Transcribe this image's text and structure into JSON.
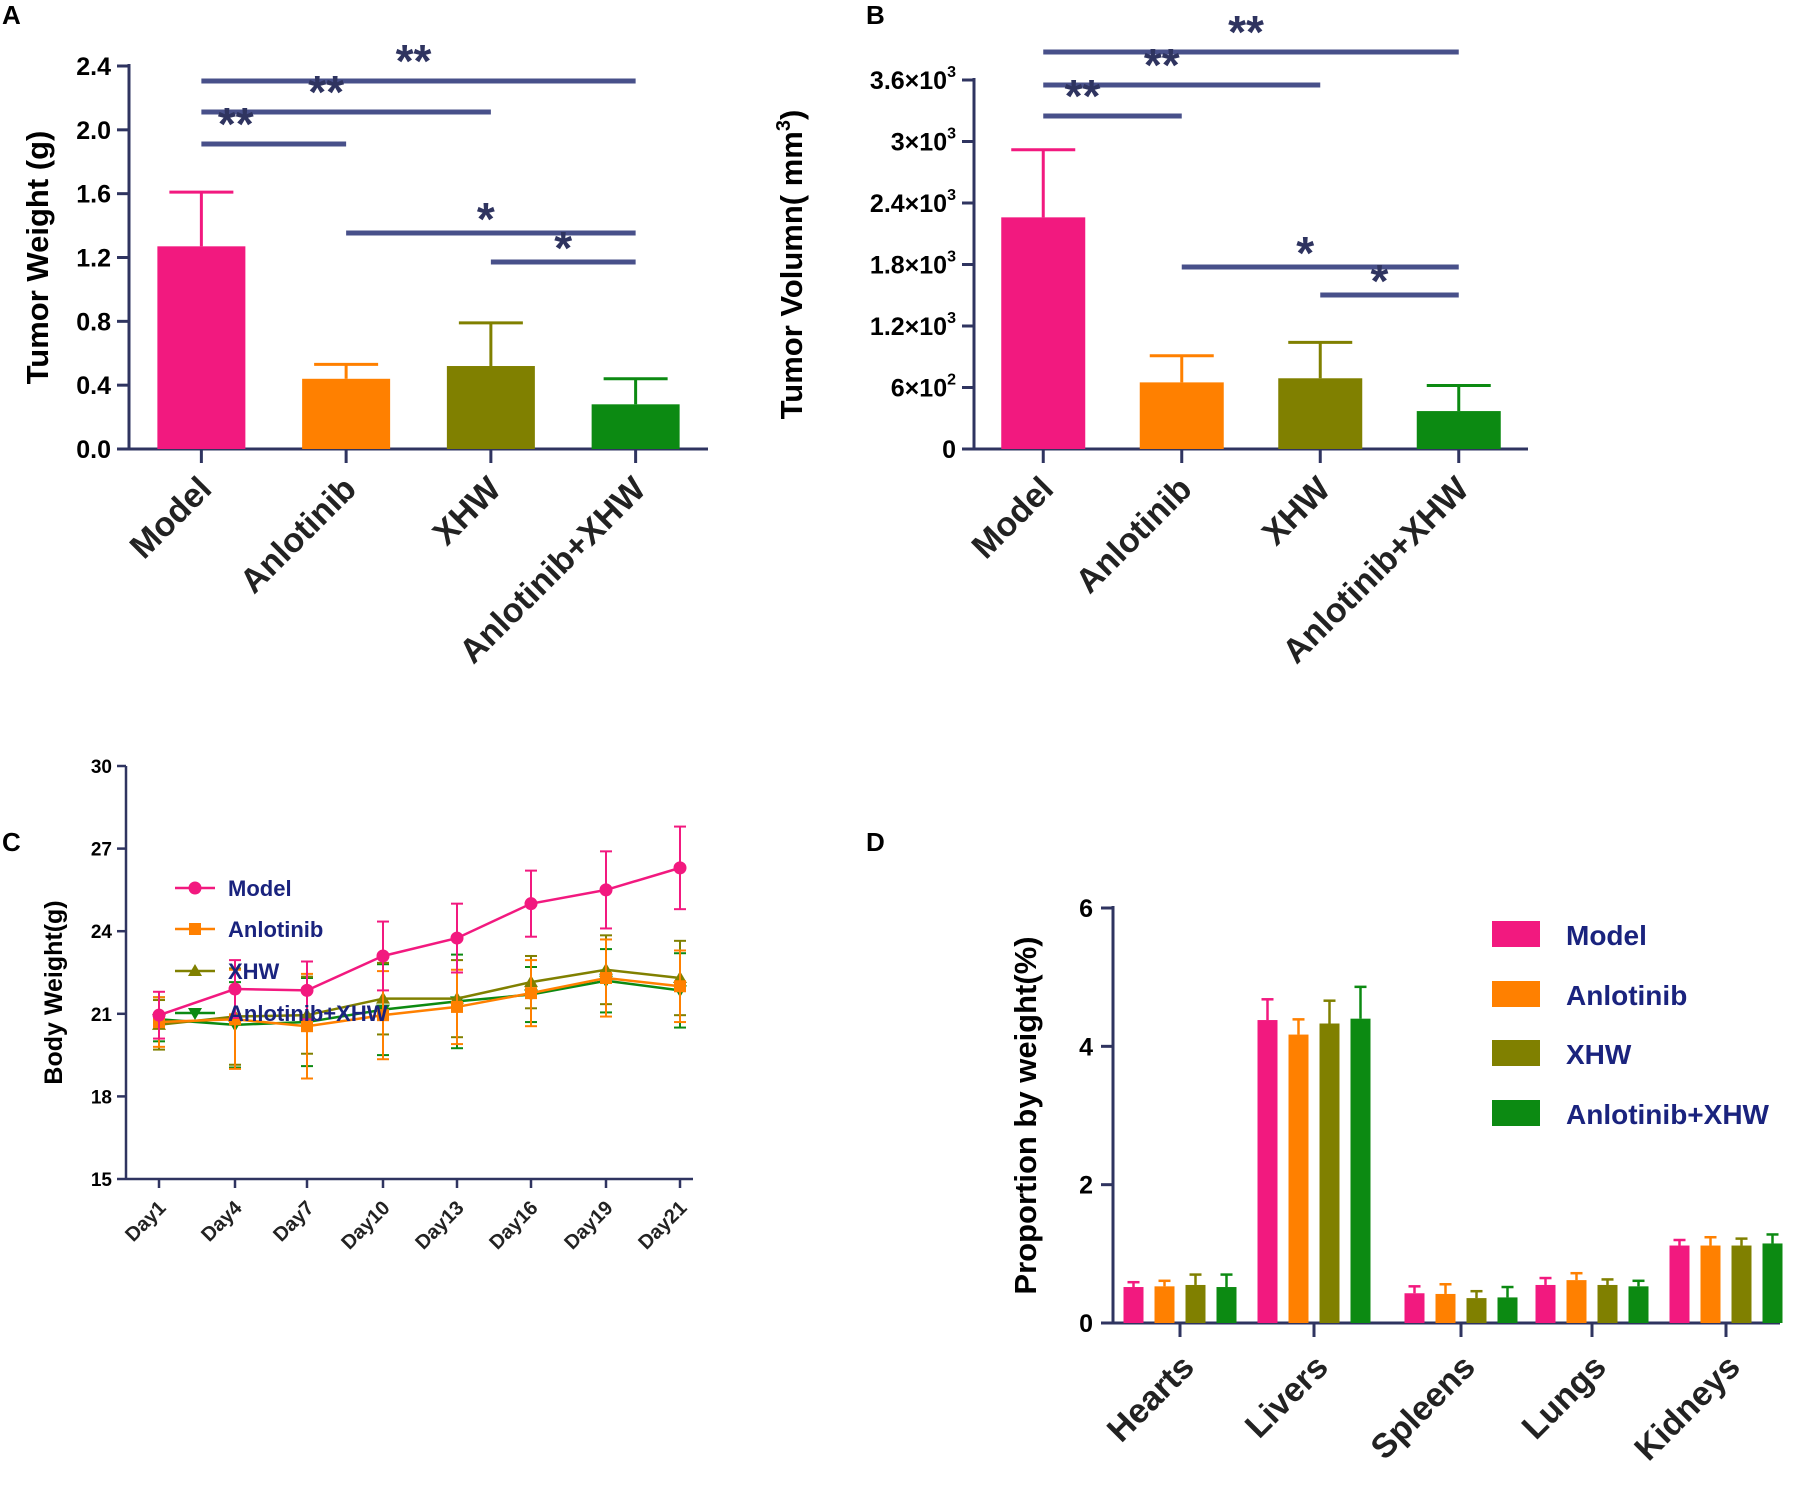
{
  "colors": {
    "model": "#F2197F",
    "anlotinib": "#FF8000",
    "xhw": "#808000",
    "combo": "#0C8A12",
    "axis": "#2F3460",
    "sig": "#48508A"
  },
  "chart_data": [
    {
      "panel": "A",
      "type": "bar",
      "categories": [
        "Model",
        "Anlotinib",
        "XHW",
        "Anlotinib+XHW"
      ],
      "values": [
        1.27,
        0.44,
        0.52,
        0.28
      ],
      "errors": [
        0.34,
        0.09,
        0.27,
        0.16
      ],
      "ylabel": "Tumor Weight (g)",
      "ylim": [
        0,
        2.4
      ],
      "yticks": [
        0.0,
        0.4,
        0.8,
        1.2,
        1.6,
        2.0,
        2.4
      ],
      "ytick_labels": [
        "0.0",
        "0.4",
        "0.8",
        "1.2",
        "1.6",
        "2.0",
        "2.4"
      ],
      "significance": [
        {
          "from": 0,
          "to": 3,
          "label": "**"
        },
        {
          "from": 0,
          "to": 2,
          "label": "**"
        },
        {
          "from": 0,
          "to": 1,
          "label": "**"
        },
        {
          "from": 1,
          "to": 3,
          "label": "*"
        },
        {
          "from": 2,
          "to": 3,
          "label": "*"
        }
      ]
    },
    {
      "panel": "B",
      "type": "bar",
      "categories": [
        "Model",
        "Anlotinib",
        "XHW",
        "Anlotinib+XHW"
      ],
      "values": [
        2260,
        650,
        690,
        370
      ],
      "errors": [
        660,
        260,
        350,
        250
      ],
      "ylabel": "Tumor Volumn( mm",
      "ylabel_sup": "3",
      "ylabel_close": ")",
      "ylim": [
        0,
        3600
      ],
      "yticks": [
        0,
        600,
        1200,
        1800,
        2400,
        3000,
        3600
      ],
      "ytick_labels": [
        {
          "base": "0",
          "exp": ""
        },
        {
          "base": "6×10",
          "exp": "2"
        },
        {
          "base": "1.2×10",
          "exp": "3"
        },
        {
          "base": "1.8×10",
          "exp": "3"
        },
        {
          "base": "2.4×10",
          "exp": "3"
        },
        {
          "base": "3×10",
          "exp": "3"
        },
        {
          "base": "3.6×10",
          "exp": "3"
        }
      ],
      "significance": [
        {
          "from": 0,
          "to": 3,
          "label": "**"
        },
        {
          "from": 0,
          "to": 2,
          "label": "**"
        },
        {
          "from": 0,
          "to": 1,
          "label": "**"
        },
        {
          "from": 1,
          "to": 3,
          "label": "*"
        },
        {
          "from": 2,
          "to": 3,
          "label": "*"
        }
      ]
    },
    {
      "panel": "C",
      "type": "line",
      "x": [
        "Day1",
        "Day4",
        "Day7",
        "Day10",
        "Day13",
        "Day16",
        "Day19",
        "Day21"
      ],
      "ylabel": "Body Weight(g)",
      "ylim": [
        15,
        30
      ],
      "yticks": [
        15,
        18,
        21,
        24,
        27,
        30
      ],
      "legend_position": "top-left",
      "series": [
        {
          "name": "Model",
          "marker": "circle",
          "values": [
            20.95,
            21.9,
            21.85,
            23.1,
            23.75,
            25.0,
            25.5,
            26.3
          ],
          "errors": [
            0.85,
            1.05,
            1.05,
            1.25,
            1.25,
            1.2,
            1.4,
            1.5
          ]
        },
        {
          "name": "Anlotinib",
          "marker": "square",
          "values": [
            20.7,
            20.8,
            20.55,
            20.95,
            21.25,
            21.75,
            22.3,
            22.0
          ],
          "errors": [
            0.9,
            1.8,
            1.9,
            1.6,
            1.35,
            1.2,
            1.4,
            1.3
          ]
        },
        {
          "name": "XHW",
          "marker": "triangle-up",
          "values": [
            20.6,
            20.9,
            20.95,
            21.55,
            21.55,
            22.15,
            22.6,
            22.3
          ],
          "errors": [
            0.9,
            1.75,
            1.4,
            1.3,
            1.4,
            0.95,
            1.25,
            1.35
          ]
        },
        {
          "name": "Anlotinib+XHW",
          "marker": "triangle-down",
          "values": [
            20.8,
            20.6,
            20.7,
            21.15,
            21.45,
            21.7,
            22.2,
            21.85
          ],
          "errors": [
            0.8,
            1.55,
            1.6,
            1.65,
            1.7,
            1.0,
            1.15,
            1.35
          ]
        }
      ]
    },
    {
      "panel": "D",
      "type": "bar",
      "categories": [
        "Hearts",
        "Livers",
        "Spleens",
        "Lungs",
        "Kidneys"
      ],
      "ylabel": "Proportion by weight(%)",
      "ylim": [
        0,
        6
      ],
      "yticks": [
        0,
        2,
        4,
        6
      ],
      "legend_position": "top-right",
      "series": [
        {
          "name": "Model",
          "values": [
            0.52,
            4.38,
            0.43,
            0.55,
            1.12
          ],
          "errors": [
            0.07,
            0.3,
            0.1,
            0.1,
            0.08
          ]
        },
        {
          "name": "Anlotinib",
          "values": [
            0.53,
            4.17,
            0.42,
            0.62,
            1.12
          ],
          "errors": [
            0.08,
            0.22,
            0.14,
            0.1,
            0.12
          ]
        },
        {
          "name": "XHW",
          "values": [
            0.55,
            4.33,
            0.36,
            0.55,
            1.12
          ],
          "errors": [
            0.15,
            0.33,
            0.1,
            0.08,
            0.1
          ]
        },
        {
          "name": "Anlotinib+XHW",
          "values": [
            0.52,
            4.4,
            0.37,
            0.53,
            1.15
          ],
          "errors": [
            0.18,
            0.46,
            0.15,
            0.08,
            0.13
          ]
        }
      ]
    }
  ],
  "panels": {
    "a": "A",
    "b": "B",
    "c": "C",
    "d": "D"
  }
}
